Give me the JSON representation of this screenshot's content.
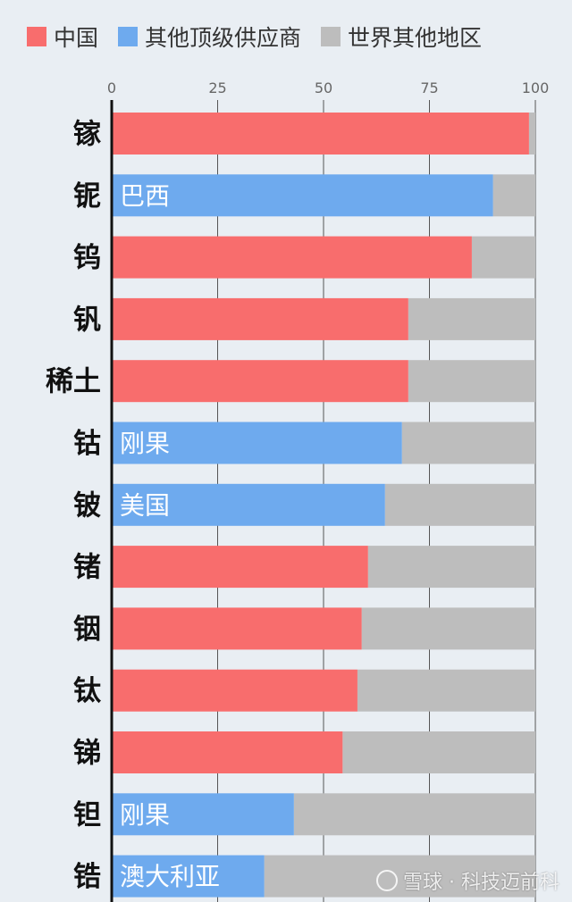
{
  "legend": [
    {
      "label": "中国",
      "color": "#f86d6d"
    },
    {
      "label": "其他顶级供应商",
      "color": "#6eaaee"
    },
    {
      "label": "世界其他地区",
      "color": "#bdbdbd"
    }
  ],
  "chart_data": {
    "type": "bar",
    "orientation": "horizontal",
    "stacked": true,
    "xlim": [
      0,
      100
    ],
    "xticks": [
      0,
      25,
      50,
      75,
      100
    ],
    "grid": true,
    "categories": [
      "镓",
      "铌",
      "钨",
      "钒",
      "稀土",
      "钴",
      "铍",
      "锗",
      "铟",
      "钛",
      "锑",
      "钽",
      "锆"
    ],
    "top_supplier": [
      "中国",
      "巴西",
      "中国",
      "中国",
      "中国",
      "刚果",
      "美国",
      "中国",
      "中国",
      "中国",
      "中国",
      "刚果",
      "澳大利亚"
    ],
    "top_share": [
      98.5,
      90,
      85,
      70,
      70,
      68.5,
      64.5,
      60.5,
      59,
      58,
      54.5,
      43,
      36
    ],
    "series": [
      {
        "name": "中国",
        "color": "#f86d6d"
      },
      {
        "name": "其他顶级供应商",
        "color": "#6eaaee"
      },
      {
        "name": "世界其他地区",
        "color": "#bdbdbd"
      }
    ]
  },
  "watermark": "雪球 · 科技迈前科"
}
